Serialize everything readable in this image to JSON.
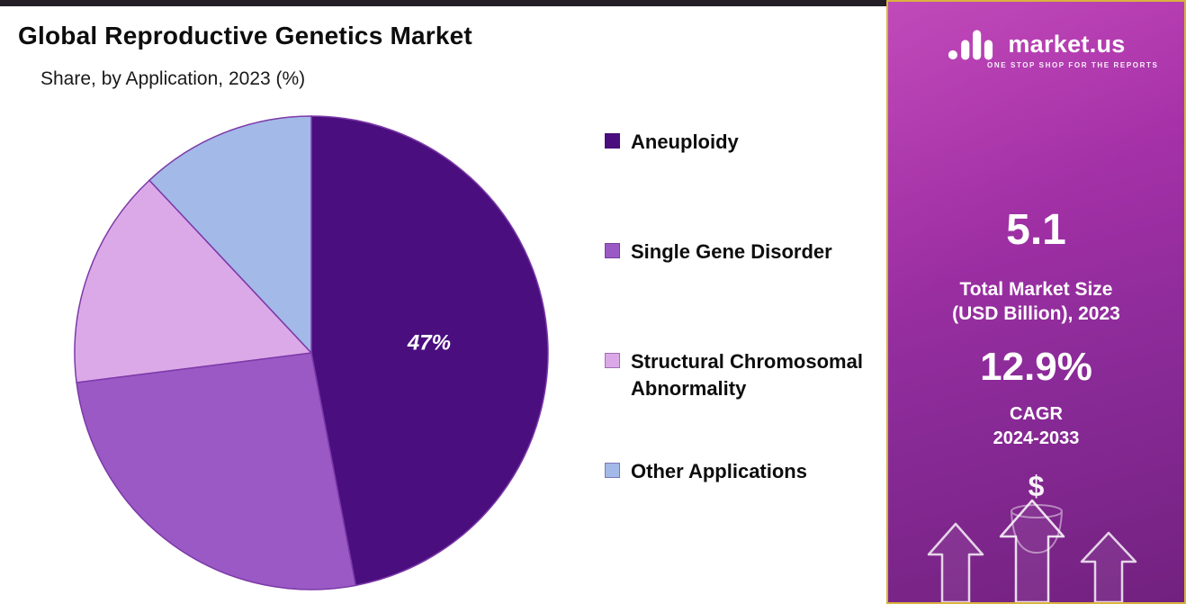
{
  "header": {
    "title": "Global Reproductive Genetics Market",
    "subtitle": "Share, by Application, 2023 (%)"
  },
  "chart_data": {
    "type": "pie",
    "title": "Global Reproductive Genetics Market",
    "subtitle": "Share, by Application, 2023 (%)",
    "unit": "%",
    "categories": [
      "Aneuploidy",
      "Single Gene Disorder",
      "Structural Chromosomal Abnormality",
      "Other Applications"
    ],
    "values": [
      47,
      26,
      15,
      12
    ],
    "colors": [
      "#4A0E7F",
      "#9B59C6",
      "#DCA9E8",
      "#A3B9E8"
    ],
    "slice_stroke": "#7C3AA8",
    "data_labels": [
      "47%",
      "",
      "",
      ""
    ],
    "data_label_color": "#ffffff",
    "start_angle_deg": 0,
    "direction": "clockwise",
    "legend_position": "right",
    "total": 100
  },
  "sidebar": {
    "brand_name": "market.us",
    "brand_tagline": "ONE STOP SHOP FOR THE REPORTS",
    "market_size_value": "5.1",
    "market_size_label_line1": "Total Market Size",
    "market_size_label_line2": "(USD Billion), 2023",
    "cagr_value": "12.9%",
    "cagr_label": "CAGR",
    "cagr_period": "2024-2033",
    "dollar_symbol": "$",
    "accent_border_color": "#d9b23f",
    "gradient_top": "#bc3cb4",
    "gradient_bottom": "#722180"
  }
}
